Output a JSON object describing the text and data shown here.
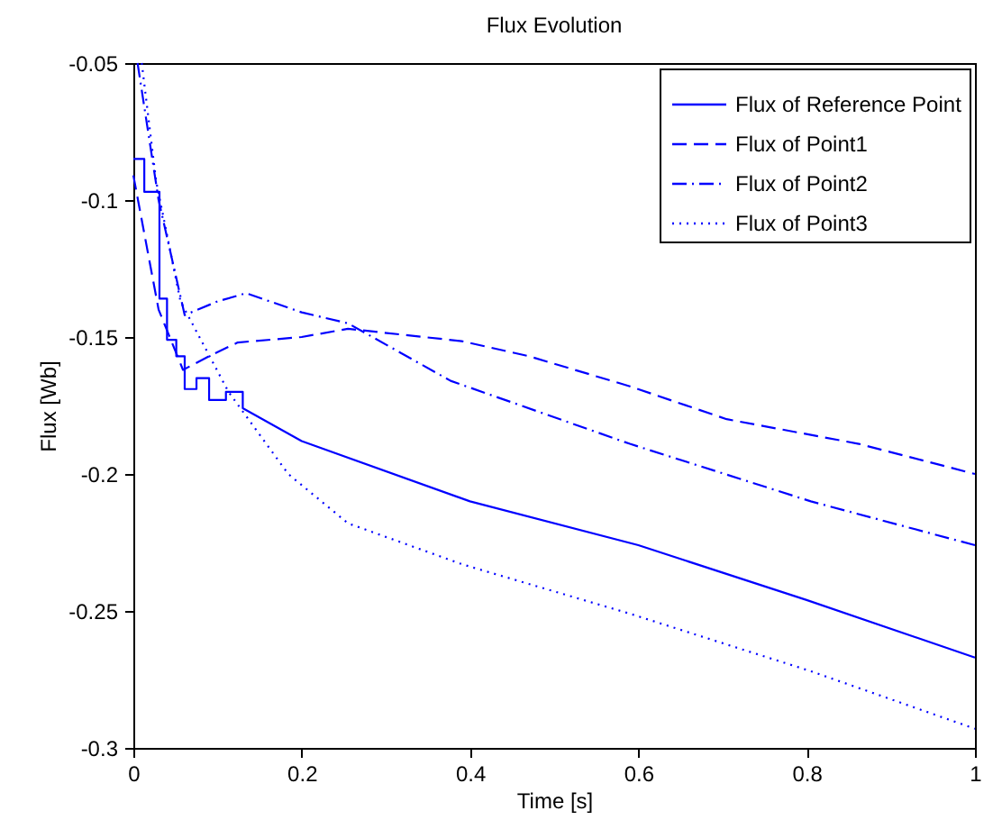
{
  "chart_data": {
    "type": "line",
    "title": "Flux Evolution",
    "xlabel": "Time [s]",
    "ylabel": "Flux [Wb]",
    "xlim": [
      0,
      1
    ],
    "ylim": [
      -0.3,
      -0.05
    ],
    "xticks": [
      0,
      0.2,
      0.4,
      0.6,
      0.8,
      1
    ],
    "yticks": [
      -0.3,
      -0.25,
      -0.2,
      -0.15,
      -0.1,
      -0.05
    ],
    "grid": false,
    "legend": "top right",
    "marker": "none",
    "series": [
      {
        "name": "Flux of Reference Point",
        "color": "#0000ff",
        "line_style": "solid",
        "x": [
          0,
          0.013,
          0.013,
          0.031,
          0.031,
          0.04,
          0.04,
          0.051,
          0.051,
          0.061,
          0.061,
          0.075,
          0.075,
          0.09,
          0.09,
          0.11,
          0.11,
          0.13,
          0.13,
          0.2,
          0.4,
          0.6,
          0.8,
          1
        ],
        "values": [
          -0.085,
          -0.085,
          -0.097,
          -0.097,
          -0.136,
          -0.136,
          -0.151,
          -0.151,
          -0.157,
          -0.157,
          -0.169,
          -0.169,
          -0.165,
          -0.165,
          -0.173,
          -0.173,
          -0.17,
          -0.17,
          -0.176,
          -0.188,
          -0.21,
          -0.226,
          -0.246,
          -0.267
        ]
      },
      {
        "name": "Flux of Point1",
        "color": "#0000ff",
        "line_style": "dashed",
        "x": [
          0,
          0.03,
          0.059,
          0.09,
          0.124,
          0.2,
          0.255,
          0.39,
          0.47,
          0.59,
          0.705,
          0.862,
          1
        ],
        "values": [
          -0.091,
          -0.14,
          -0.162,
          -0.157,
          -0.152,
          -0.15,
          -0.147,
          -0.1515,
          -0.157,
          -0.168,
          -0.18,
          -0.189,
          -0.2
        ]
      },
      {
        "name": "Flux of Point2",
        "color": "#0000ff",
        "line_style": "dashdot",
        "x": [
          0.005,
          0.03,
          0.061,
          0.1,
          0.134,
          0.2,
          0.255,
          0.377,
          0.59,
          0.805,
          1
        ],
        "values": [
          -0.05,
          -0.1,
          -0.142,
          -0.137,
          -0.134,
          -0.141,
          -0.145,
          -0.166,
          -0.189,
          -0.21,
          -0.226
        ]
      },
      {
        "name": "Flux of Point3",
        "color": "#0000ff",
        "line_style": "dotted",
        "x": [
          0.01,
          0.027,
          0.056,
          0.113,
          0.184,
          0.255,
          0.391,
          0.59,
          0.805,
          1
        ],
        "values": [
          -0.05,
          -0.093,
          -0.137,
          -0.17,
          -0.2,
          -0.218,
          -0.233,
          -0.251,
          -0.272,
          -0.293
        ]
      }
    ]
  }
}
